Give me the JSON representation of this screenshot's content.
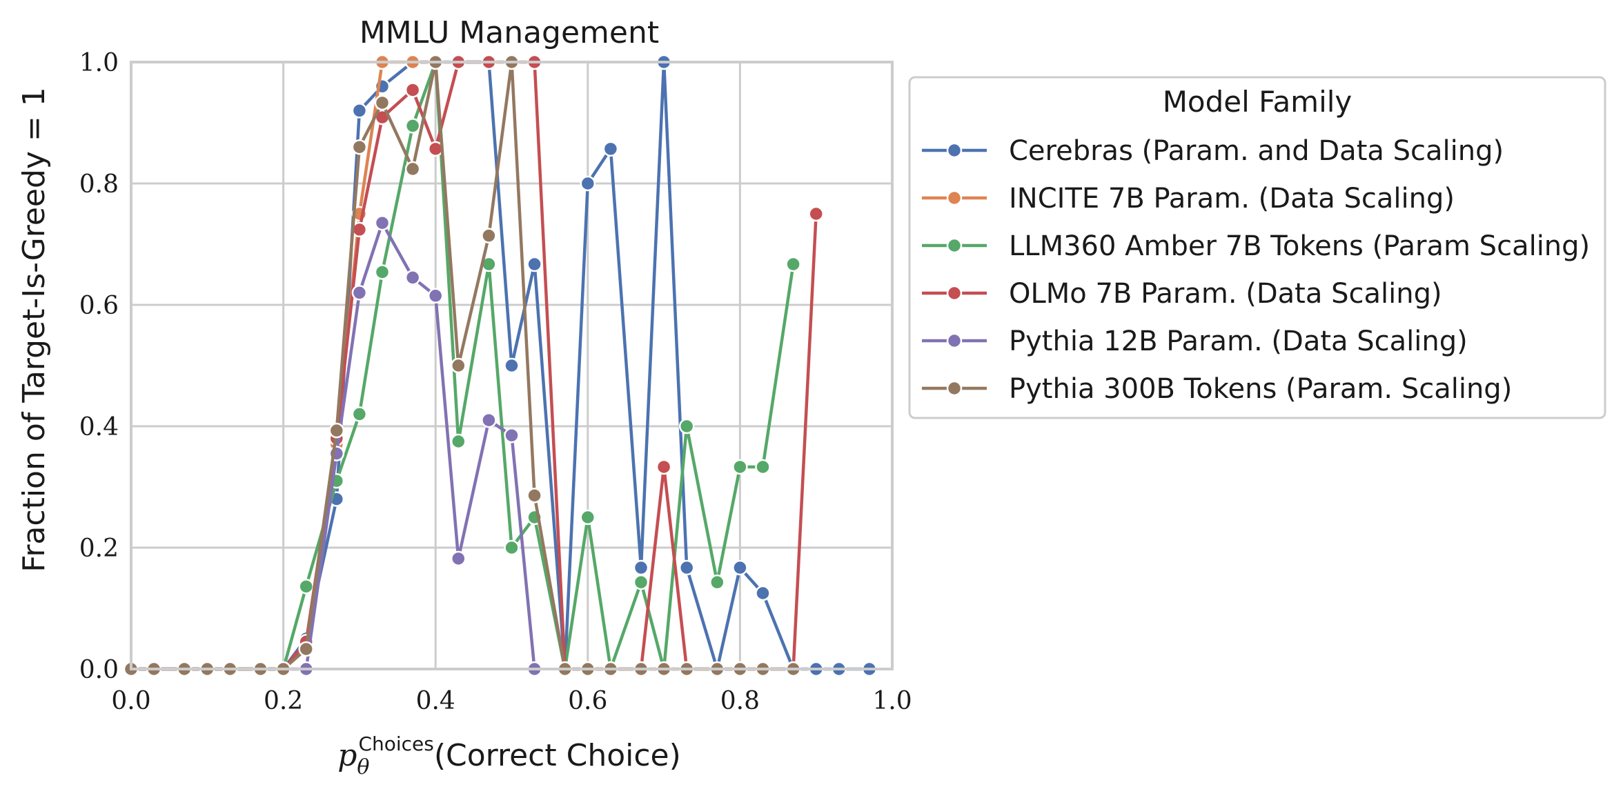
{
  "chart_data": {
    "type": "line",
    "title": "MMLU Management",
    "xlabel_main": "p",
    "xlabel_sub": "θ",
    "xlabel_sup": "Choices",
    "xlabel_rest": "(Correct Choice)",
    "ylabel": "Fraction of Target-Is-Greedy = 1",
    "xlim": [
      0.0,
      1.0
    ],
    "ylim": [
      0.0,
      1.0
    ],
    "xticks": [
      "0.0",
      "0.2",
      "0.4",
      "0.6",
      "0.8",
      "1.0"
    ],
    "yticks": [
      "0.0",
      "0.2",
      "0.4",
      "0.6",
      "0.8",
      "1.0"
    ],
    "grid": true,
    "legend_title": "Model Family",
    "legend_position": "outside-right-top",
    "series": [
      {
        "name": "Cerebras (Param. and Data Scaling)",
        "color": "#4c72b0",
        "x": [
          0.0,
          0.03,
          0.07,
          0.1,
          0.13,
          0.17,
          0.2,
          0.23,
          0.27,
          0.3,
          0.33,
          0.37,
          0.4,
          0.43,
          0.47,
          0.5,
          0.53,
          0.57,
          0.6,
          0.63,
          0.67,
          0.7,
          0.73,
          0.77,
          0.8,
          0.83,
          0.87,
          0.9,
          0.93,
          0.97
        ],
        "y": [
          0.0,
          0.0,
          0.0,
          0.0,
          0.0,
          0.0,
          0.0,
          0.05,
          0.28,
          0.92,
          0.96,
          1.0,
          1.0,
          1.0,
          1.0,
          0.5,
          0.667,
          0.0,
          0.8,
          0.857,
          0.167,
          1.0,
          0.167,
          0.0,
          0.167,
          0.125,
          0.0,
          0.0,
          0.0,
          0.0
        ]
      },
      {
        "name": "INCITE 7B Param. (Data Scaling)",
        "color": "#dd8452",
        "x": [
          0.0,
          0.03,
          0.07,
          0.1,
          0.13,
          0.17,
          0.2,
          0.23,
          0.27,
          0.3,
          0.33,
          0.37,
          0.4
        ],
        "y": [
          0.0,
          0.0,
          0.0,
          0.0,
          0.0,
          0.0,
          0.0,
          0.04,
          0.37,
          0.75,
          1.0,
          1.0,
          1.0
        ]
      },
      {
        "name": "LLM360 Amber 7B Tokens (Param Scaling)",
        "color": "#55a868",
        "x": [
          0.0,
          0.03,
          0.07,
          0.1,
          0.13,
          0.17,
          0.2,
          0.23,
          0.27,
          0.3,
          0.33,
          0.37,
          0.4,
          0.43,
          0.47,
          0.5,
          0.53,
          0.57,
          0.6,
          0.63,
          0.67,
          0.7,
          0.73,
          0.77,
          0.8,
          0.83,
          0.87
        ],
        "y": [
          0.0,
          0.0,
          0.0,
          0.0,
          0.0,
          0.0,
          0.0,
          0.136,
          0.31,
          0.42,
          0.654,
          0.895,
          1.0,
          0.375,
          0.667,
          0.2,
          0.25,
          0.0,
          0.25,
          0.0,
          0.143,
          0.0,
          0.4,
          0.143,
          0.333,
          0.333,
          0.667
        ]
      },
      {
        "name": "OLMo 7B Param. (Data Scaling)",
        "color": "#c44e52",
        "x": [
          0.0,
          0.03,
          0.07,
          0.1,
          0.13,
          0.17,
          0.2,
          0.23,
          0.27,
          0.3,
          0.33,
          0.37,
          0.4,
          0.43,
          0.47,
          0.5,
          0.53,
          0.57,
          0.6,
          0.63,
          0.67,
          0.7,
          0.73,
          0.77,
          0.8,
          0.83,
          0.87,
          0.9
        ],
        "y": [
          0.0,
          0.0,
          0.0,
          0.0,
          0.0,
          0.0,
          0.0,
          0.045,
          0.38,
          0.724,
          0.909,
          0.954,
          0.857,
          1.0,
          1.0,
          1.0,
          1.0,
          0.0,
          0.0,
          0.0,
          0.0,
          0.333,
          0.0,
          0.0,
          0.0,
          0.0,
          0.0,
          0.75
        ]
      },
      {
        "name": "Pythia 12B Param. (Data Scaling)",
        "color": "#8172b3",
        "x": [
          0.0,
          0.03,
          0.07,
          0.1,
          0.13,
          0.17,
          0.2,
          0.23,
          0.27,
          0.3,
          0.33,
          0.37,
          0.4,
          0.43,
          0.47,
          0.5,
          0.53
        ],
        "y": [
          0.0,
          0.0,
          0.0,
          0.0,
          0.0,
          0.0,
          0.0,
          0.0,
          0.355,
          0.62,
          0.735,
          0.645,
          0.615,
          0.182,
          0.41,
          0.385,
          0.0
        ]
      },
      {
        "name": "Pythia 300B Tokens (Param. Scaling)",
        "color": "#937860",
        "x": [
          0.0,
          0.03,
          0.07,
          0.1,
          0.13,
          0.17,
          0.2,
          0.23,
          0.27,
          0.3,
          0.33,
          0.37,
          0.4,
          0.43,
          0.47,
          0.5,
          0.53,
          0.57,
          0.6,
          0.63,
          0.67,
          0.7,
          0.73,
          0.77,
          0.8,
          0.83,
          0.87
        ],
        "y": [
          0.0,
          0.0,
          0.0,
          0.0,
          0.0,
          0.0,
          0.0,
          0.033,
          0.393,
          0.86,
          0.933,
          0.824,
          1.0,
          0.5,
          0.714,
          1.0,
          0.286,
          0.0,
          0.0,
          0.0,
          0.0,
          0.0,
          0.0,
          0.0,
          0.0,
          0.0,
          0.0
        ]
      }
    ]
  }
}
